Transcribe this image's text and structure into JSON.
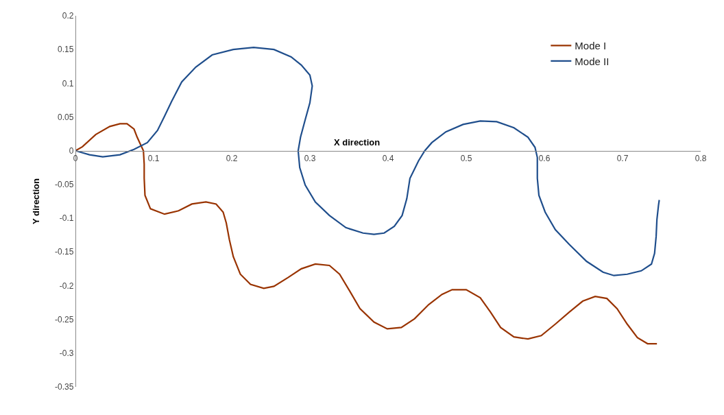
{
  "chart_data": {
    "type": "line",
    "xlabel": "X direction",
    "ylabel": "Y direction",
    "xlim": [
      0,
      0.8
    ],
    "xticks": [
      0,
      0.1,
      0.2,
      0.3,
      0.4,
      0.5,
      0.6,
      0.7,
      0.8
    ],
    "ylim": [
      -0.35,
      0.2
    ],
    "yticks": [
      -0.35,
      -0.3,
      -0.25,
      -0.2,
      -0.15,
      -0.1,
      -0.05,
      0,
      0.05,
      0.1,
      0.15,
      0.2
    ],
    "grid": false,
    "legend": "top right",
    "marker": "none",
    "line_style": "solid",
    "series": [
      {
        "name": "Mode I",
        "color": "#993300",
        "x": [
          0,
          0.009,
          0.026,
          0.044,
          0.057,
          0.066,
          0.075,
          0.079,
          0.087,
          0.088,
          0.088,
          0.089,
          0.096,
          0.114,
          0.132,
          0.149,
          0.167,
          0.18,
          0.189,
          0.193,
          0.197,
          0.202,
          0.211,
          0.224,
          0.241,
          0.254,
          0.272,
          0.289,
          0.307,
          0.325,
          0.338,
          0.351,
          0.364,
          0.382,
          0.399,
          0.417,
          0.434,
          0.452,
          0.469,
          0.482,
          0.5,
          0.518,
          0.531,
          0.544,
          0.561,
          0.579,
          0.596,
          0.614,
          0.632,
          0.649,
          0.665,
          0.68,
          0.693,
          0.706,
          0.719,
          0.732,
          0.744
        ],
        "values": [
          0,
          0.006,
          0.024,
          0.036,
          0.04,
          0.04,
          0.032,
          0.02,
          0,
          -0.02,
          -0.041,
          -0.066,
          -0.086,
          -0.094,
          -0.089,
          -0.079,
          -0.076,
          -0.079,
          -0.091,
          -0.107,
          -0.132,
          -0.157,
          -0.183,
          -0.198,
          -0.204,
          -0.201,
          -0.188,
          -0.175,
          -0.168,
          -0.17,
          -0.183,
          -0.208,
          -0.234,
          -0.254,
          -0.264,
          -0.262,
          -0.249,
          -0.228,
          -0.213,
          -0.206,
          -0.206,
          -0.218,
          -0.239,
          -0.262,
          -0.276,
          -0.279,
          -0.274,
          -0.257,
          -0.239,
          -0.223,
          -0.216,
          -0.219,
          -0.234,
          -0.257,
          -0.277,
          -0.286,
          -0.286
        ]
      },
      {
        "name": "Mode II",
        "color": "#1f4e8c",
        "x": [
          0,
          0.018,
          0.035,
          0.057,
          0.075,
          0.092,
          0.105,
          0.114,
          0.123,
          0.136,
          0.154,
          0.175,
          0.202,
          0.228,
          0.254,
          0.276,
          0.289,
          0.3,
          0.303,
          0.3,
          0.294,
          0.288,
          0.285,
          0.287,
          0.294,
          0.307,
          0.325,
          0.346,
          0.368,
          0.382,
          0.395,
          0.408,
          0.418,
          0.424,
          0.428,
          0.439,
          0.447,
          0.456,
          0.474,
          0.496,
          0.518,
          0.539,
          0.561,
          0.579,
          0.588,
          0.591,
          0.591,
          0.593,
          0.601,
          0.614,
          0.632,
          0.654,
          0.675,
          0.689,
          0.706,
          0.724,
          0.737,
          0.741,
          0.743,
          0.744,
          0.746,
          0.747
        ],
        "values": [
          0,
          -0.006,
          -0.009,
          -0.006,
          0.002,
          0.012,
          0.03,
          0.051,
          0.073,
          0.102,
          0.124,
          0.142,
          0.15,
          0.153,
          0.15,
          0.139,
          0.127,
          0.112,
          0.096,
          0.071,
          0.046,
          0.02,
          0,
          -0.025,
          -0.051,
          -0.076,
          -0.096,
          -0.114,
          -0.122,
          -0.124,
          -0.122,
          -0.112,
          -0.096,
          -0.071,
          -0.041,
          -0.015,
          0,
          0.012,
          0.028,
          0.039,
          0.044,
          0.043,
          0.034,
          0.02,
          0.005,
          -0.01,
          -0.041,
          -0.066,
          -0.091,
          -0.117,
          -0.139,
          -0.164,
          -0.18,
          -0.185,
          -0.183,
          -0.178,
          -0.168,
          -0.152,
          -0.127,
          -0.102,
          -0.081,
          -0.073
        ]
      }
    ]
  }
}
